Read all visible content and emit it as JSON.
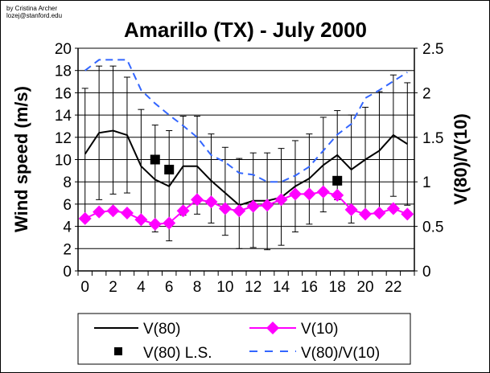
{
  "credit": {
    "line1": "by Cristina Archer",
    "line2": "lozej@stanford.edu"
  },
  "chart_data": {
    "type": "line",
    "title": "Amarillo (TX) - July 2000",
    "xlabel": "",
    "ylabel": "Wind speed (m/s)",
    "y2label": "V(80)/V(10)",
    "ylim": [
      0,
      20
    ],
    "y2lim": [
      0,
      2.5
    ],
    "yticks": [
      "0",
      "2",
      "4",
      "6",
      "8",
      "10",
      "12",
      "14",
      "16",
      "18",
      "20"
    ],
    "y2ticks": [
      "0",
      "0.5",
      "1",
      "1.5",
      "2",
      "2.5"
    ],
    "x": [
      0,
      1,
      2,
      3,
      4,
      5,
      6,
      7,
      8,
      9,
      10,
      11,
      12,
      13,
      14,
      15,
      16,
      17,
      18,
      19,
      20,
      21,
      22,
      23
    ],
    "xticklabels": [
      "0",
      "2",
      "4",
      "6",
      "8",
      "10",
      "12",
      "14",
      "16",
      "18",
      "20",
      "22"
    ],
    "grid": true,
    "legend_position": "bottom",
    "series": [
      {
        "name": "V(80)",
        "axis": "left",
        "style": "solid",
        "color": "#000000",
        "values": [
          10.5,
          12.4,
          12.6,
          12.2,
          9.4,
          8.2,
          7.6,
          9.4,
          9.4,
          8.1,
          7.0,
          5.9,
          6.3,
          6.3,
          6.6,
          7.6,
          8.3,
          9.5,
          10.4,
          9.1,
          10.0,
          10.8,
          12.2,
          11.4
        ],
        "error_upper": [
          16.4,
          18.4,
          18.4,
          17.4,
          14.5,
          13.1,
          12.6,
          13.9,
          13.9,
          12.3,
          11.1,
          10.1,
          10.6,
          10.6,
          11.0,
          11.7,
          12.3,
          13.8,
          14.4,
          14.0,
          14.7,
          16.1,
          17.6,
          16.9
        ],
        "error_lower": [
          4.6,
          6.4,
          6.9,
          7.0,
          4.4,
          3.5,
          2.7,
          5.0,
          5.1,
          4.3,
          3.2,
          2.0,
          2.1,
          1.9,
          2.3,
          3.5,
          4.2,
          5.3,
          6.4,
          4.3,
          5.0,
          5.1,
          6.7,
          5.9
        ]
      },
      {
        "name": "V(10)",
        "axis": "left",
        "style": "diamond",
        "color": "#ff00ff",
        "values": [
          4.7,
          5.3,
          5.4,
          5.2,
          4.6,
          4.2,
          4.3,
          5.4,
          6.4,
          6.2,
          5.6,
          5.4,
          5.8,
          5.9,
          6.4,
          6.9,
          6.9,
          7.1,
          6.8,
          5.5,
          5.1,
          5.2,
          5.6,
          5.1
        ]
      },
      {
        "name": "V(80) L.S.",
        "axis": "left",
        "style": "square",
        "color": "#000000",
        "x": [
          5,
          6,
          18
        ],
        "values": [
          10.0,
          9.1,
          8.1
        ]
      },
      {
        "name": "V(80)/V(10)",
        "axis": "right",
        "style": "dashed",
        "color": "#3366ff",
        "values": [
          2.25,
          2.37,
          2.37,
          2.37,
          2.03,
          1.88,
          1.75,
          1.63,
          1.5,
          1.3,
          1.22,
          1.1,
          1.08,
          1.0,
          1.0,
          1.07,
          1.17,
          1.35,
          1.53,
          1.65,
          1.94,
          2.03,
          2.13,
          2.23
        ]
      }
    ]
  }
}
